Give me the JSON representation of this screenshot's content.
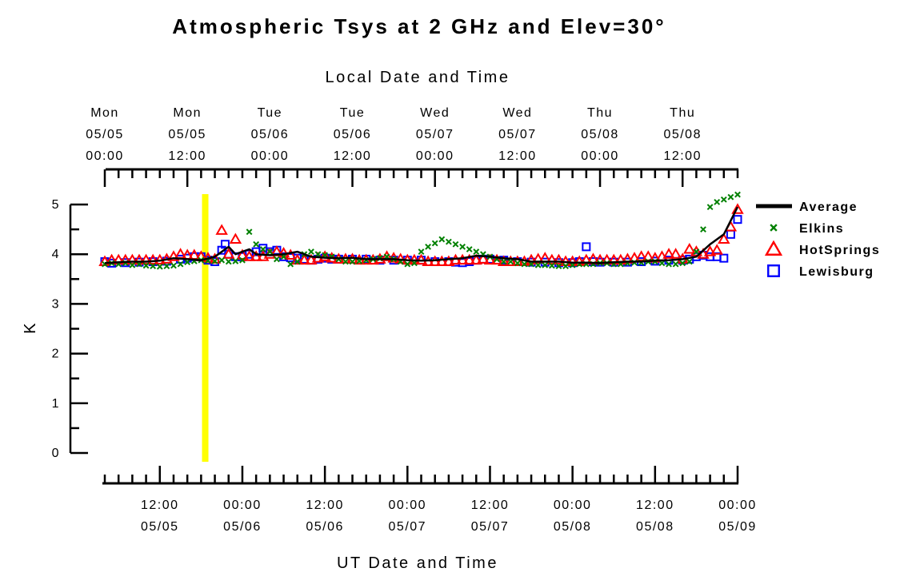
{
  "chart_data": {
    "type": "scatter",
    "title": "Atmospheric Tsys at 2 GHz and Elev=30°",
    "top_axis_title": "Local Date and Time",
    "xlabel": "UT Date and Time",
    "ylabel": "K",
    "ylim": [
      0,
      5
    ],
    "y_ticks": [
      "0",
      "1",
      "2",
      "3",
      "4",
      "5"
    ],
    "xlim_ut": [
      "05/05 04:00",
      "05/09 00:00"
    ],
    "x_unit": "hours since 05/05 00:00 UT",
    "bottom_ticks": [
      {
        "hour": 12,
        "time": "12:00",
        "date": "05/05"
      },
      {
        "hour": 24,
        "time": "00:00",
        "date": "05/06"
      },
      {
        "hour": 36,
        "time": "12:00",
        "date": "05/06"
      },
      {
        "hour": 48,
        "time": "00:00",
        "date": "05/07"
      },
      {
        "hour": 60,
        "time": "12:00",
        "date": "05/07"
      },
      {
        "hour": 72,
        "time": "00:00",
        "date": "05/08"
      },
      {
        "hour": 84,
        "time": "12:00",
        "date": "05/08"
      },
      {
        "hour": 96,
        "time": "00:00",
        "date": "05/09"
      }
    ],
    "top_ticks": [
      {
        "hour": 4,
        "day": "Mon",
        "date": "05/05",
        "time": "00:00"
      },
      {
        "hour": 16,
        "day": "Mon",
        "date": "05/05",
        "time": "12:00"
      },
      {
        "hour": 28,
        "day": "Tue",
        "date": "05/06",
        "time": "00:00"
      },
      {
        "hour": 40,
        "day": "Tue",
        "date": "05/06",
        "time": "12:00"
      },
      {
        "hour": 52,
        "day": "Wed",
        "date": "05/07",
        "time": "00:00"
      },
      {
        "hour": 64,
        "day": "Wed",
        "date": "05/07",
        "time": "12:00"
      },
      {
        "hour": 76,
        "day": "Thu",
        "date": "05/08",
        "time": "00:00"
      },
      {
        "hour": 88,
        "day": "Thu",
        "date": "05/08",
        "time": "12:00"
      }
    ],
    "marker_line": {
      "hour": 18.6,
      "color": "#ffff00"
    },
    "legend_position": "right",
    "series": [
      {
        "name": "Average",
        "marker": "line",
        "color": "#000000",
        "x": [
          4,
          6,
          8,
          10,
          12,
          14,
          16,
          18,
          20,
          22,
          23,
          24,
          25,
          26,
          28,
          30,
          32,
          34,
          36,
          38,
          40,
          42,
          44,
          46,
          48,
          50,
          52,
          54,
          56,
          58,
          60,
          62,
          64,
          66,
          68,
          70,
          72,
          74,
          76,
          78,
          80,
          82,
          84,
          86,
          88,
          90,
          92,
          94,
          96
        ],
        "y": [
          3.82,
          3.84,
          3.85,
          3.85,
          3.87,
          3.92,
          3.9,
          3.88,
          3.95,
          4.15,
          4.0,
          4.05,
          4.1,
          4.0,
          3.98,
          4.0,
          4.05,
          3.95,
          3.93,
          3.92,
          3.93,
          3.9,
          3.9,
          3.9,
          3.88,
          3.87,
          3.88,
          3.9,
          3.92,
          3.97,
          3.95,
          3.92,
          3.9,
          3.85,
          3.85,
          3.85,
          3.83,
          3.83,
          3.82,
          3.84,
          3.85,
          3.85,
          3.87,
          3.88,
          3.9,
          3.95,
          4.2,
          4.4,
          4.95
        ]
      },
      {
        "name": "Elkins",
        "marker": "x",
        "color": "#008000",
        "x": [
          4,
          5,
          6,
          7,
          8,
          9,
          10,
          11,
          12,
          13,
          14,
          15,
          16,
          17,
          18,
          19,
          20,
          21,
          22,
          23,
          24,
          25,
          26,
          27,
          28,
          29,
          30,
          31,
          32,
          33,
          34,
          35,
          36,
          37,
          38,
          39,
          40,
          41,
          42,
          43,
          44,
          45,
          46,
          47,
          48,
          49,
          50,
          51,
          52,
          53,
          54,
          55,
          56,
          57,
          58,
          59,
          60,
          61,
          62,
          63,
          64,
          65,
          66,
          67,
          68,
          69,
          70,
          71,
          72,
          73,
          74,
          75,
          76,
          77,
          78,
          79,
          80,
          81,
          82,
          83,
          84,
          85,
          86,
          87,
          88,
          89,
          90,
          91,
          92,
          93,
          94,
          95,
          96
        ],
        "y": [
          3.8,
          3.82,
          3.8,
          3.82,
          3.78,
          3.8,
          3.77,
          3.76,
          3.75,
          3.76,
          3.77,
          3.8,
          3.84,
          3.86,
          3.88,
          3.87,
          3.86,
          3.88,
          3.85,
          3.86,
          3.88,
          4.45,
          4.2,
          4.1,
          4.05,
          3.9,
          3.95,
          3.8,
          3.85,
          4.0,
          4.05,
          4.0,
          3.98,
          3.95,
          3.9,
          3.85,
          3.85,
          3.86,
          3.88,
          3.9,
          3.92,
          3.95,
          3.9,
          3.85,
          3.8,
          3.82,
          4.05,
          4.15,
          4.22,
          4.3,
          4.25,
          4.2,
          4.15,
          4.1,
          4.05,
          4.0,
          3.95,
          3.9,
          3.85,
          3.85,
          3.82,
          3.8,
          3.8,
          3.78,
          3.78,
          3.77,
          3.76,
          3.76,
          3.78,
          3.8,
          3.8,
          3.8,
          3.82,
          3.82,
          3.8,
          3.8,
          3.82,
          3.83,
          3.83,
          3.85,
          3.85,
          3.82,
          3.8,
          3.8,
          3.82,
          3.85,
          4.05,
          4.5,
          4.95,
          5.05,
          5.1,
          5.15,
          5.2
        ]
      },
      {
        "name": "HotSprings",
        "marker": "triangle",
        "color": "#ff0000",
        "x": [
          4,
          5,
          6,
          7,
          8,
          9,
          10,
          11,
          12,
          13,
          14,
          15,
          16,
          17,
          18,
          19,
          20,
          21,
          22,
          23,
          24,
          25,
          26,
          27,
          28,
          29,
          30,
          31,
          32,
          33,
          34,
          35,
          36,
          37,
          38,
          39,
          40,
          41,
          42,
          43,
          44,
          45,
          46,
          47,
          48,
          49,
          50,
          51,
          52,
          53,
          54,
          55,
          56,
          57,
          58,
          59,
          60,
          61,
          62,
          63,
          64,
          65,
          66,
          67,
          68,
          69,
          70,
          71,
          72,
          73,
          74,
          75,
          76,
          77,
          78,
          79,
          80,
          81,
          82,
          83,
          84,
          85,
          86,
          87,
          88,
          89,
          90,
          91,
          92,
          93,
          94,
          95,
          96
        ],
        "y": [
          3.85,
          3.88,
          3.88,
          3.88,
          3.88,
          3.88,
          3.88,
          3.88,
          3.88,
          3.9,
          3.95,
          4.0,
          3.98,
          3.98,
          3.95,
          3.92,
          3.9,
          4.48,
          4.0,
          4.3,
          3.98,
          3.95,
          3.95,
          3.95,
          4.0,
          4.05,
          4.02,
          3.98,
          3.88,
          3.88,
          3.88,
          3.92,
          3.95,
          3.92,
          3.9,
          3.9,
          3.9,
          3.88,
          3.88,
          3.88,
          3.9,
          3.95,
          3.92,
          3.9,
          3.88,
          3.88,
          3.88,
          3.85,
          3.85,
          3.85,
          3.85,
          3.88,
          3.88,
          3.88,
          3.88,
          3.9,
          3.88,
          3.88,
          3.85,
          3.85,
          3.85,
          3.85,
          3.88,
          3.9,
          3.92,
          3.88,
          3.88,
          3.85,
          3.85,
          3.85,
          3.88,
          3.9,
          3.88,
          3.88,
          3.88,
          3.88,
          3.9,
          3.92,
          3.95,
          3.95,
          3.92,
          3.95,
          4.0,
          4.0,
          3.9,
          4.1,
          4.05,
          4.0,
          4.05,
          4.08,
          4.3,
          4.55,
          4.9
        ]
      },
      {
        "name": "Lewisburg",
        "marker": "square",
        "color": "#0000ff",
        "x": [
          4,
          5,
          7,
          9,
          11,
          13,
          15,
          16,
          17,
          18,
          19,
          20,
          21,
          21.5,
          22,
          23,
          24,
          25,
          26,
          27,
          28,
          29,
          30,
          31,
          32,
          33,
          34,
          35,
          36,
          37,
          38,
          40,
          42,
          44,
          46,
          48,
          50,
          52,
          54,
          55,
          56,
          57,
          58,
          59,
          60,
          62,
          64,
          66,
          68,
          70,
          72,
          73,
          74,
          75,
          76,
          78,
          80,
          82,
          84,
          86,
          88,
          89,
          90,
          91,
          92,
          93,
          94,
          95,
          96
        ],
        "y": [
          3.85,
          3.82,
          3.83,
          3.84,
          3.85,
          3.86,
          3.9,
          3.92,
          3.95,
          3.95,
          3.88,
          3.85,
          4.08,
          4.2,
          4.0,
          3.95,
          3.95,
          4.0,
          4.05,
          4.12,
          4.05,
          4.08,
          3.95,
          3.93,
          3.92,
          3.9,
          3.88,
          3.9,
          3.92,
          3.9,
          3.9,
          3.9,
          3.9,
          3.88,
          3.88,
          3.88,
          3.88,
          3.85,
          3.85,
          3.84,
          3.83,
          3.85,
          3.88,
          3.9,
          3.9,
          3.88,
          3.85,
          3.84,
          3.84,
          3.83,
          3.83,
          3.85,
          4.15,
          3.85,
          3.84,
          3.84,
          3.84,
          3.85,
          3.86,
          3.88,
          3.88,
          3.9,
          3.95,
          3.98,
          3.95,
          3.95,
          3.92,
          4.4,
          4.7
        ]
      }
    ]
  }
}
